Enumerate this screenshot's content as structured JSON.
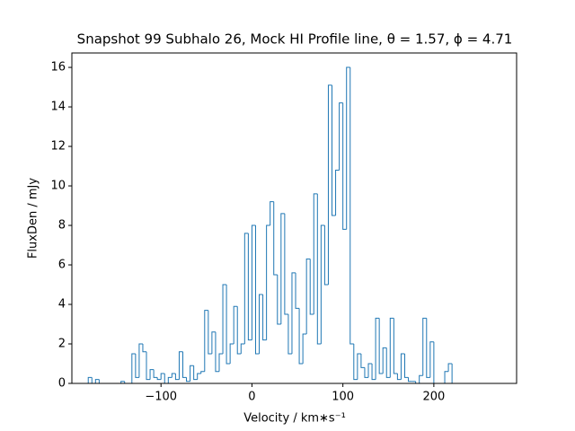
{
  "chart_data": {
    "type": "histogram",
    "title": "Snapshot 99 Subhalo 26, Mock HI Profile line, θ = 1.57, ϕ = 4.71",
    "xlabel": "Velocity / km∗s⁻¹",
    "ylabel": "FluxDen / mJy",
    "color": "#1f77b4",
    "bins": [
      -180,
      -176,
      -172,
      -168,
      -164,
      -160,
      -156,
      -152,
      -148,
      -144,
      -140,
      -136,
      -132,
      -128,
      -124,
      -120,
      -116,
      -112,
      -108,
      -104,
      -100,
      -96,
      -92,
      -88,
      -84,
      -80,
      -76,
      -72,
      -68,
      -64,
      -60,
      -56,
      -52,
      -48,
      -44,
      -40,
      -36,
      -32,
      -28,
      -24,
      -20,
      -16,
      -12,
      -8,
      -4,
      0,
      4,
      8,
      12,
      16,
      20,
      24,
      28,
      32,
      36,
      40,
      44,
      48,
      52,
      56,
      60,
      64,
      68,
      72,
      76,
      80,
      84,
      88,
      92,
      96,
      100,
      104,
      108,
      112,
      116,
      120,
      124,
      128,
      132,
      136,
      140,
      144,
      148,
      152,
      156,
      160,
      164,
      168,
      172,
      176,
      180,
      184,
      188,
      192,
      196,
      200,
      204,
      208,
      212,
      216,
      220,
      224,
      228,
      232,
      236,
      240,
      244,
      248,
      252,
      256,
      260,
      264,
      268
    ],
    "values": [
      0.3,
      0,
      0.2,
      0,
      0,
      0,
      0,
      0,
      0,
      0.1,
      0,
      0,
      1.5,
      0.3,
      2.0,
      1.6,
      0.2,
      0.7,
      0.3,
      0.2,
      0.5,
      0,
      0.3,
      0.5,
      0.2,
      1.6,
      0.3,
      0.1,
      0.9,
      0.2,
      0.5,
      0.6,
      3.7,
      1.5,
      2.6,
      0.6,
      1.5,
      5.0,
      1.0,
      2.0,
      3.9,
      1.5,
      2.0,
      7.6,
      2.2,
      8.0,
      1.5,
      4.5,
      2.2,
      8.0,
      9.2,
      5.5,
      3.0,
      8.6,
      3.5,
      1.5,
      5.6,
      3.8,
      1.0,
      2.5,
      6.3,
      3.5,
      9.6,
      2.0,
      8.0,
      5.0,
      15.1,
      8.5,
      10.8,
      14.2,
      7.8,
      16.0,
      2.0,
      0.2,
      1.5,
      0.8,
      0.3,
      1.0,
      0.2,
      3.3,
      0.5,
      1.8,
      0.3,
      3.3,
      0.5,
      0.2,
      1.5,
      0.3,
      0.1,
      0.1,
      0,
      0.4,
      3.3,
      0.3,
      2.1,
      0,
      0,
      0,
      0.6,
      1.0,
      0,
      0,
      0,
      0,
      0,
      0,
      0,
      0,
      0,
      0,
      0,
      0
    ],
    "xlim": [
      -198,
      291
    ],
    "ylim": [
      0,
      16.73
    ],
    "xticks": [
      {
        "value": -100,
        "label": "−100"
      },
      0,
      100,
      200
    ],
    "yticks": [
      0,
      2,
      4,
      6,
      8,
      10,
      12,
      14,
      16
    ]
  }
}
